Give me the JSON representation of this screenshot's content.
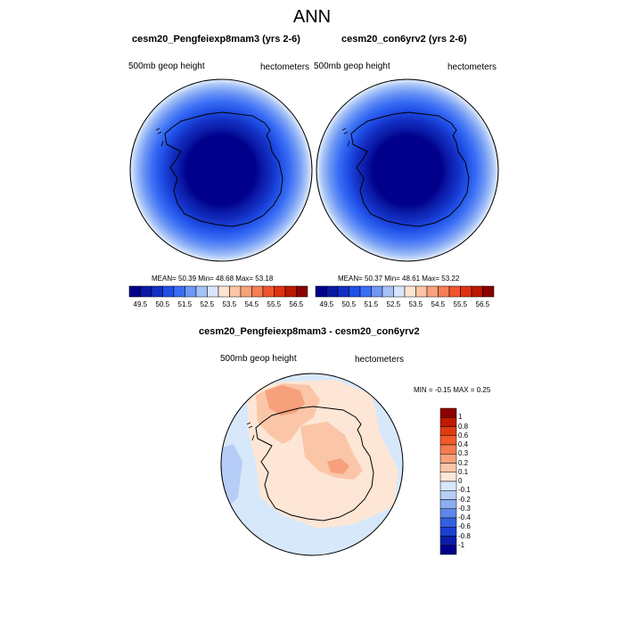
{
  "title": "ANN",
  "panels": [
    {
      "title": "cesm20_Pengfeiexp8mam3 (yrs 2-6)",
      "left_label": "500mb geop height",
      "right_label": "hectometers",
      "stats": "MEAN=  50.39  Min=  48.68  Max=  53.18"
    },
    {
      "title": "cesm20_con6yrv2 (yrs 2-6)",
      "left_label": "500mb geop height",
      "right_label": "hectometers",
      "stats": "MEAN=  50.37  Min=  48.61  Max=  53.22"
    }
  ],
  "top_colorbar": {
    "labels": [
      "49.5",
      "50.5",
      "51.5",
      "52.5",
      "53.5",
      "54.5",
      "55.5",
      "56.5"
    ],
    "colors": [
      "#00008b",
      "#0a1aa6",
      "#1330c4",
      "#1f4fe6",
      "#3a6ef5",
      "#6f98f5",
      "#a6c3f7",
      "#d8e7ff",
      "#ffe4d2",
      "#fcc5a5",
      "#f9a27c",
      "#f67e55",
      "#ef5630",
      "#df3212",
      "#bb1800",
      "#8b0000"
    ]
  },
  "diff_panel": {
    "title": "cesm20_Pengfeiexp8mam3 - cesm20_con6yrv2",
    "left_label": "500mb geop height",
    "right_label": "hectometers",
    "stats": "MIN =  -0.15 MAX =   0.25"
  },
  "diff_colorbar": {
    "labels": [
      "1",
      "0.8",
      "0.6",
      "0.4",
      "0.3",
      "0.2",
      "0.1",
      "0",
      "-0.1",
      "-0.2",
      "-0.3",
      "-0.4",
      "-0.6",
      "-0.8",
      "-1"
    ],
    "colors": [
      "#8b0000",
      "#c01a00",
      "#e03b10",
      "#f05a2a",
      "#f47b4f",
      "#f7a17c",
      "#fbc6a8",
      "#fde6d6",
      "#d8e8fb",
      "#b6cef7",
      "#8dadf2",
      "#5e87eb",
      "#3360e0",
      "#1a3fd0",
      "#0a1fa8",
      "#00008b"
    ]
  }
}
